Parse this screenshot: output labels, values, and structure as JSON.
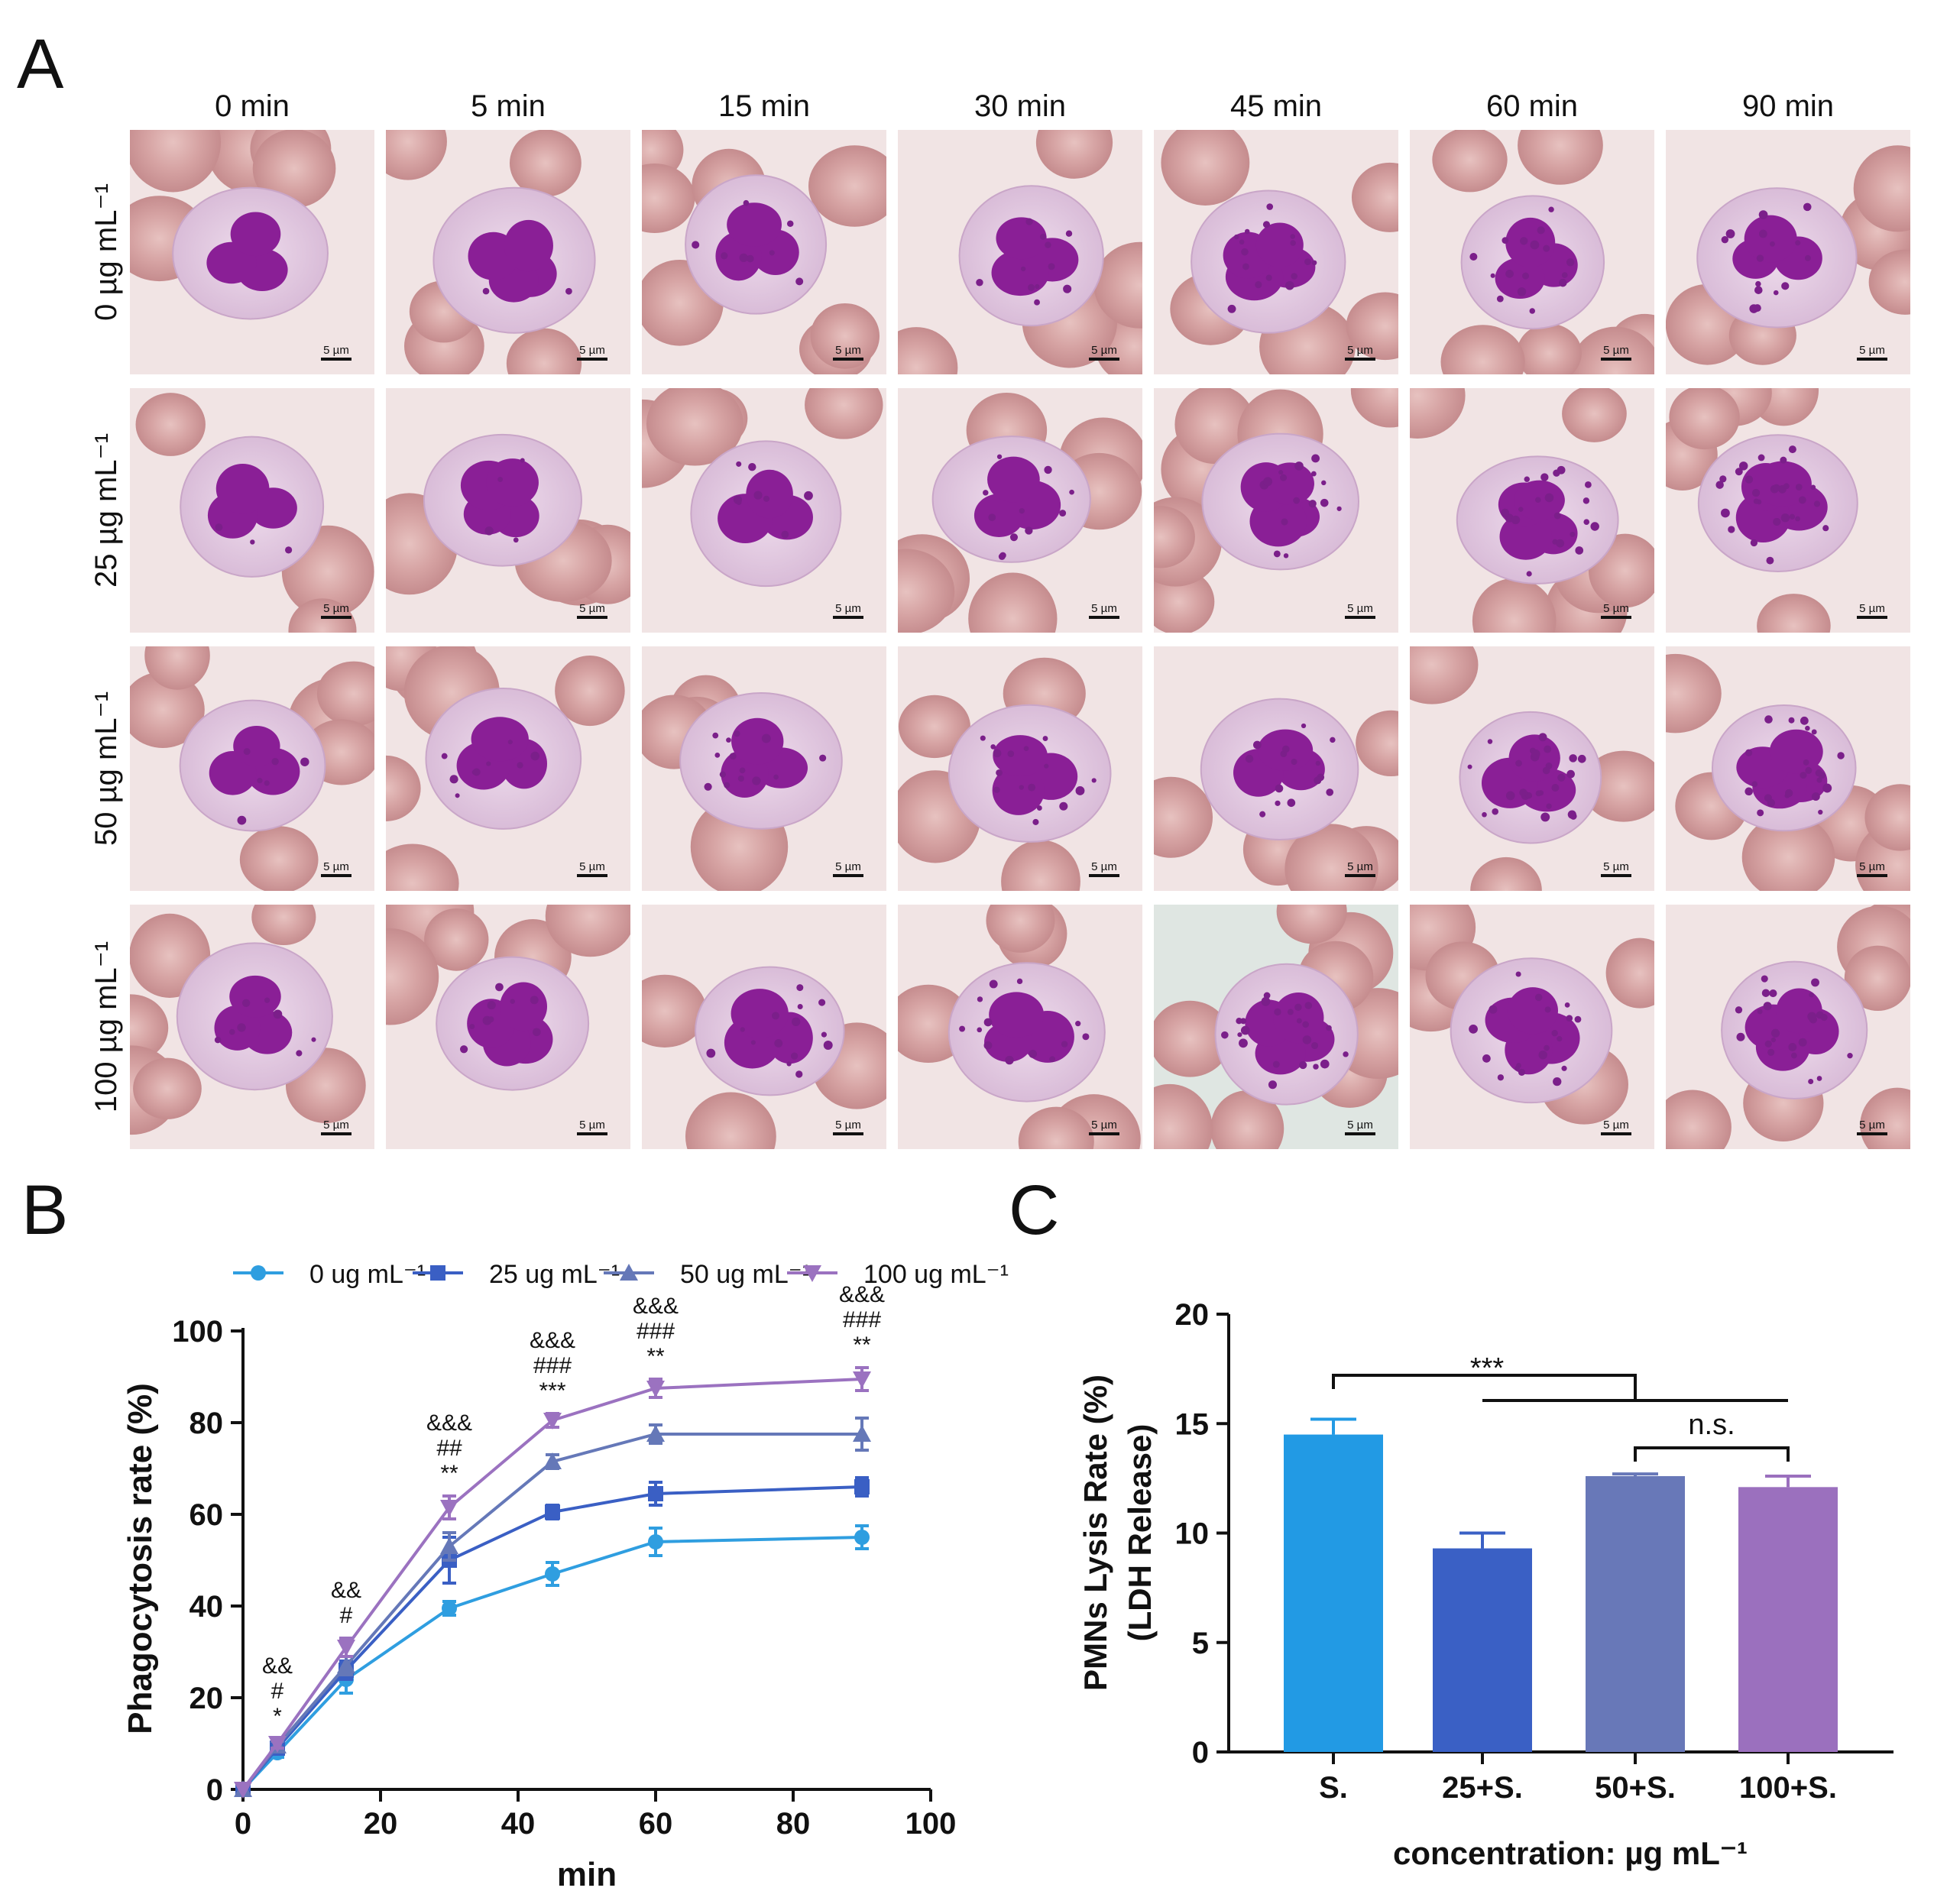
{
  "panel_labels": {
    "a": "A",
    "b": "B",
    "c": "C"
  },
  "panel_a": {
    "column_labels": [
      "0 min",
      "5 min",
      "15 min",
      "30 min",
      "45 min",
      "60 min",
      "90 min"
    ],
    "row_labels": [
      "0 µg mL⁻¹",
      "25 µg mL⁻¹",
      "50 µg mL⁻¹",
      "100 µg mL⁻¹"
    ],
    "scale_bar_label": "5 µm"
  },
  "chart_data": [
    {
      "type": "line",
      "panel": "B",
      "xlabel": "min",
      "ylabel": "Phagocytosis rate (%)",
      "xlim": [
        0,
        100
      ],
      "ylim": [
        0,
        100
      ],
      "xticks": [
        "0",
        "20",
        "40",
        "60",
        "80",
        "100"
      ],
      "yticks": [
        "0",
        "20",
        "40",
        "60",
        "80",
        "100"
      ],
      "x": [
        0,
        5,
        15,
        30,
        45,
        60,
        90
      ],
      "series": [
        {
          "name": "0 ug mL⁻¹",
          "color": "#2f9ee0",
          "marker": "circle",
          "values": [
            0,
            8,
            24,
            39.5,
            47,
            54,
            55
          ],
          "errors": [
            0,
            1,
            3,
            1.5,
            2.5,
            3,
            2.5
          ]
        },
        {
          "name": "25 ug mL⁻¹",
          "color": "#3a5fc4",
          "marker": "square",
          "values": [
            0,
            9,
            26,
            50,
            60.5,
            64.5,
            66
          ],
          "errors": [
            0,
            1,
            2,
            5,
            1.5,
            2.5,
            2
          ]
        },
        {
          "name": "50 ug mL⁻¹",
          "color": "#6578b8",
          "marker": "triangle",
          "values": [
            0,
            9.5,
            27,
            53,
            71.5,
            77.5,
            77.5
          ],
          "errors": [
            0,
            1,
            2,
            3,
            1.5,
            2,
            3.5
          ]
        },
        {
          "name": "100 ug mL⁻¹",
          "color": "#9b72c0",
          "marker": "triangle-down",
          "values": [
            0,
            10,
            31,
            61.5,
            80.5,
            87.5,
            89.5
          ],
          "errors": [
            0,
            1,
            2,
            2.5,
            1.5,
            2,
            2.5
          ]
        }
      ],
      "annotations": [
        {
          "x": 5,
          "lines": [
            "&&",
            "#",
            "*"
          ]
        },
        {
          "x": 15,
          "lines": [
            "&&",
            "#"
          ]
        },
        {
          "x": 30,
          "lines": [
            "&&&",
            "##",
            "**"
          ]
        },
        {
          "x": 45,
          "lines": [
            "&&&",
            "###",
            "***"
          ]
        },
        {
          "x": 60,
          "lines": [
            "&&&",
            "###",
            "**"
          ]
        },
        {
          "x": 90,
          "lines": [
            "&&&",
            "###",
            "**"
          ]
        }
      ],
      "legend_position": "top"
    },
    {
      "type": "bar",
      "panel": "C",
      "xlabel": "concentration: µg mL⁻¹",
      "ylabel_lines": [
        "PMNs Lysis Rate (%)",
        "(LDH Release)"
      ],
      "ylim": [
        0,
        20
      ],
      "yticks": [
        "0",
        "5",
        "10",
        "15",
        "20"
      ],
      "categories": [
        "S.",
        "25+S.",
        "50+S.",
        "100+S."
      ],
      "values": [
        14.5,
        9.3,
        12.6,
        12.1
      ],
      "errors": [
        0.7,
        0.7,
        0.1,
        0.5
      ],
      "colors": [
        "#229ae4",
        "#3a60c5",
        "#6878b8",
        "#9b70be"
      ],
      "significance": [
        {
          "label": "***",
          "from": "S.",
          "to": "50+S./100+S."
        },
        {
          "label": "n.s.",
          "from": "50+S.",
          "to": "100+S."
        }
      ]
    }
  ]
}
